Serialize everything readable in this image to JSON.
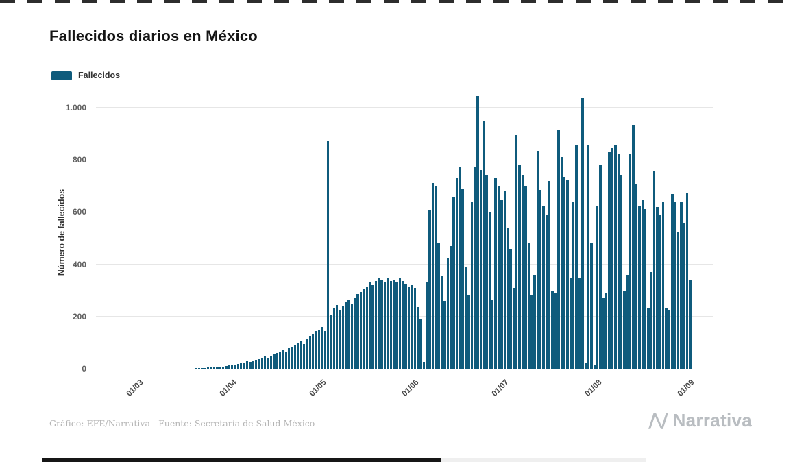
{
  "page": {
    "title": "Fallecidos diarios en México",
    "footer_credit": "Gráfico: EFE/Narrativa - Fuente: Secretaría de Salud México",
    "brand": "Narrativa"
  },
  "legend": {
    "label": "Fallecidos"
  },
  "chart_data": {
    "type": "bar",
    "title": "Fallecidos diarios en México",
    "xlabel": "",
    "ylabel": "Número de fallecidos",
    "ylim": [
      0,
      1044
    ],
    "yticks": [
      0,
      200,
      400,
      600,
      800,
      1000
    ],
    "ytick_labels": [
      "0",
      "200",
      "400",
      "600",
      "800",
      "1.000"
    ],
    "xtick_labels": [
      "01/03",
      "01/04",
      "01/05",
      "01/06",
      "01/07",
      "01/08",
      "01/09"
    ],
    "xtick_indices": [
      14,
      45,
      75,
      106,
      136,
      167,
      198
    ],
    "x_axis_slots": 206,
    "grid": true,
    "legend_position": "top-left",
    "series": [
      {
        "name": "Fallecidos",
        "color": "#0f5b7c",
        "values": [
          0,
          0,
          0,
          0,
          0,
          0,
          0,
          0,
          0,
          0,
          0,
          0,
          0,
          0,
          0,
          0,
          0,
          0,
          0,
          0,
          0,
          0,
          0,
          0,
          0,
          0,
          0,
          0,
          0,
          0,
          0,
          1,
          1,
          2,
          2,
          3,
          3,
          4,
          4,
          5,
          6,
          7,
          8,
          10,
          12,
          14,
          16,
          18,
          20,
          24,
          28,
          25,
          30,
          34,
          38,
          42,
          46,
          40,
          50,
          55,
          60,
          66,
          72,
          65,
          78,
          85,
          92,
          100,
          108,
          95,
          115,
          125,
          135,
          145,
          150,
          160,
          145,
          870,
          205,
          230,
          245,
          225,
          240,
          255,
          265,
          250,
          270,
          285,
          295,
          305,
          315,
          330,
          320,
          335,
          345,
          340,
          330,
          345,
          335,
          340,
          330,
          345,
          335,
          325,
          315,
          320,
          310,
          235,
          190,
          25,
          330,
          605,
          710,
          700,
          480,
          355,
          260,
          425,
          470,
          655,
          730,
          770,
          690,
          390,
          280,
          640,
          770,
          1044,
          760,
          947,
          740,
          600,
          265,
          730,
          700,
          645,
          680,
          540,
          460,
          310,
          895,
          780,
          740,
          700,
          480,
          280,
          360,
          835,
          685,
          625,
          590,
          720,
          300,
          290,
          915,
          810,
          735,
          725,
          345,
          640,
          855,
          345,
          1037,
          20,
          855,
          480,
          15,
          625,
          780,
          270,
          290,
          830,
          845,
          855,
          820,
          740,
          300,
          360,
          820,
          930,
          705,
          625,
          645,
          610,
          230,
          370,
          755,
          620,
          590,
          640,
          230,
          225,
          670,
          640,
          525,
          640,
          560,
          675,
          340
        ]
      }
    ]
  }
}
